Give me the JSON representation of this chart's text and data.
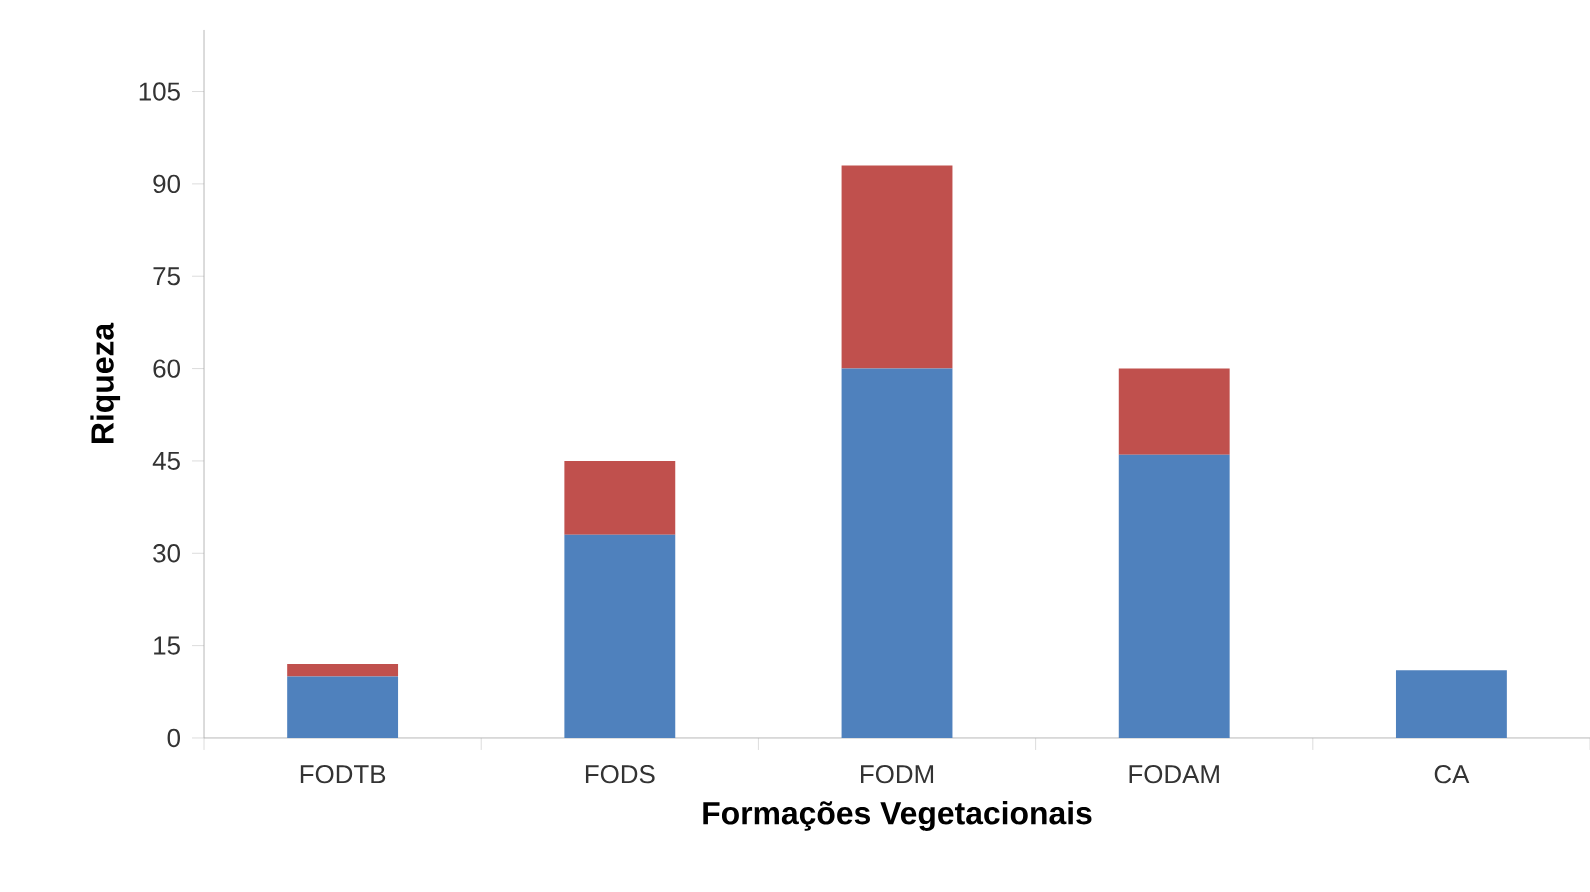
{
  "chart_data": {
    "type": "bar",
    "stacked": true,
    "xlabel": "Formações Vegetacionais",
    "ylabel": "Riqueza",
    "categories": [
      "FODTB",
      "FODS",
      "FODM",
      "FODAM",
      "CA"
    ],
    "series": [
      {
        "color": "#4f81bd",
        "values": [
          10,
          33,
          60,
          46,
          11
        ]
      },
      {
        "color": "#c0504d",
        "values": [
          2,
          12,
          33,
          14,
          0
        ]
      }
    ],
    "ylim": [
      0,
      115
    ],
    "yticks": [
      0,
      15,
      30,
      45,
      60,
      75,
      90,
      105
    ],
    "grid": false
  }
}
